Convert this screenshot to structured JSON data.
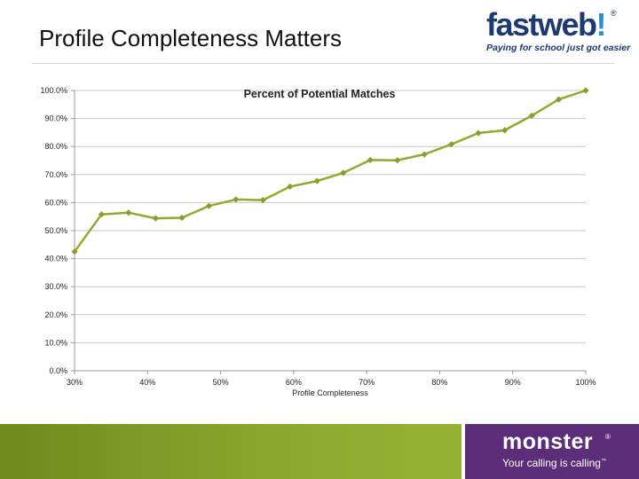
{
  "slide": {
    "title": "Profile Completeness Matters"
  },
  "fastweb_logo": {
    "word_fast": "fast",
    "word_web": "web",
    "bang": "!",
    "registered": "®",
    "tagline": "Paying for school just got easier"
  },
  "monster_logo": {
    "word": "monster",
    "registered": "®",
    "tagline": "Your calling is calling",
    "trademark": "™"
  },
  "colors": {
    "line": "#9aa62f",
    "marker": "#8f9b2a",
    "grid": "#c8c8c8",
    "axis": "#9a9a9a"
  },
  "chart_data": {
    "type": "line",
    "title": "Percent of Potential Matches",
    "xlabel": "Profile Completeness",
    "ylabel": "",
    "xlim": [
      30,
      100
    ],
    "ylim": [
      0,
      100
    ],
    "y_ticks": [
      0,
      10,
      20,
      30,
      40,
      50,
      60,
      70,
      80,
      90,
      100
    ],
    "y_tick_labels": [
      "0.0%",
      "10.0%",
      "20.0%",
      "30.0%",
      "40.0%",
      "50.0%",
      "60.0%",
      "70.0%",
      "80.0%",
      "90.0%",
      "100.0%"
    ],
    "x_ticks": [
      30,
      40,
      50,
      60,
      70,
      80,
      90,
      100
    ],
    "x_tick_labels": [
      "30%",
      "40%",
      "50%",
      "60%",
      "70%",
      "80%",
      "90%",
      "100%"
    ],
    "gridlines": true,
    "series": [
      {
        "name": "Percent of Potential Matches",
        "x": [
          30,
          33.7,
          37.4,
          41.1,
          44.7,
          48.4,
          52.1,
          55.8,
          59.5,
          63.2,
          66.8,
          70.5,
          74.2,
          77.9,
          81.6,
          85.3,
          88.9,
          92.6,
          96.3,
          100
        ],
        "values": [
          42.5,
          55.8,
          56.4,
          54.4,
          54.6,
          58.8,
          61.1,
          60.9,
          65.7,
          67.7,
          70.6,
          75.2,
          75.1,
          77.2,
          80.8,
          84.8,
          85.8,
          91.0,
          96.8,
          100.0
        ]
      }
    ]
  }
}
